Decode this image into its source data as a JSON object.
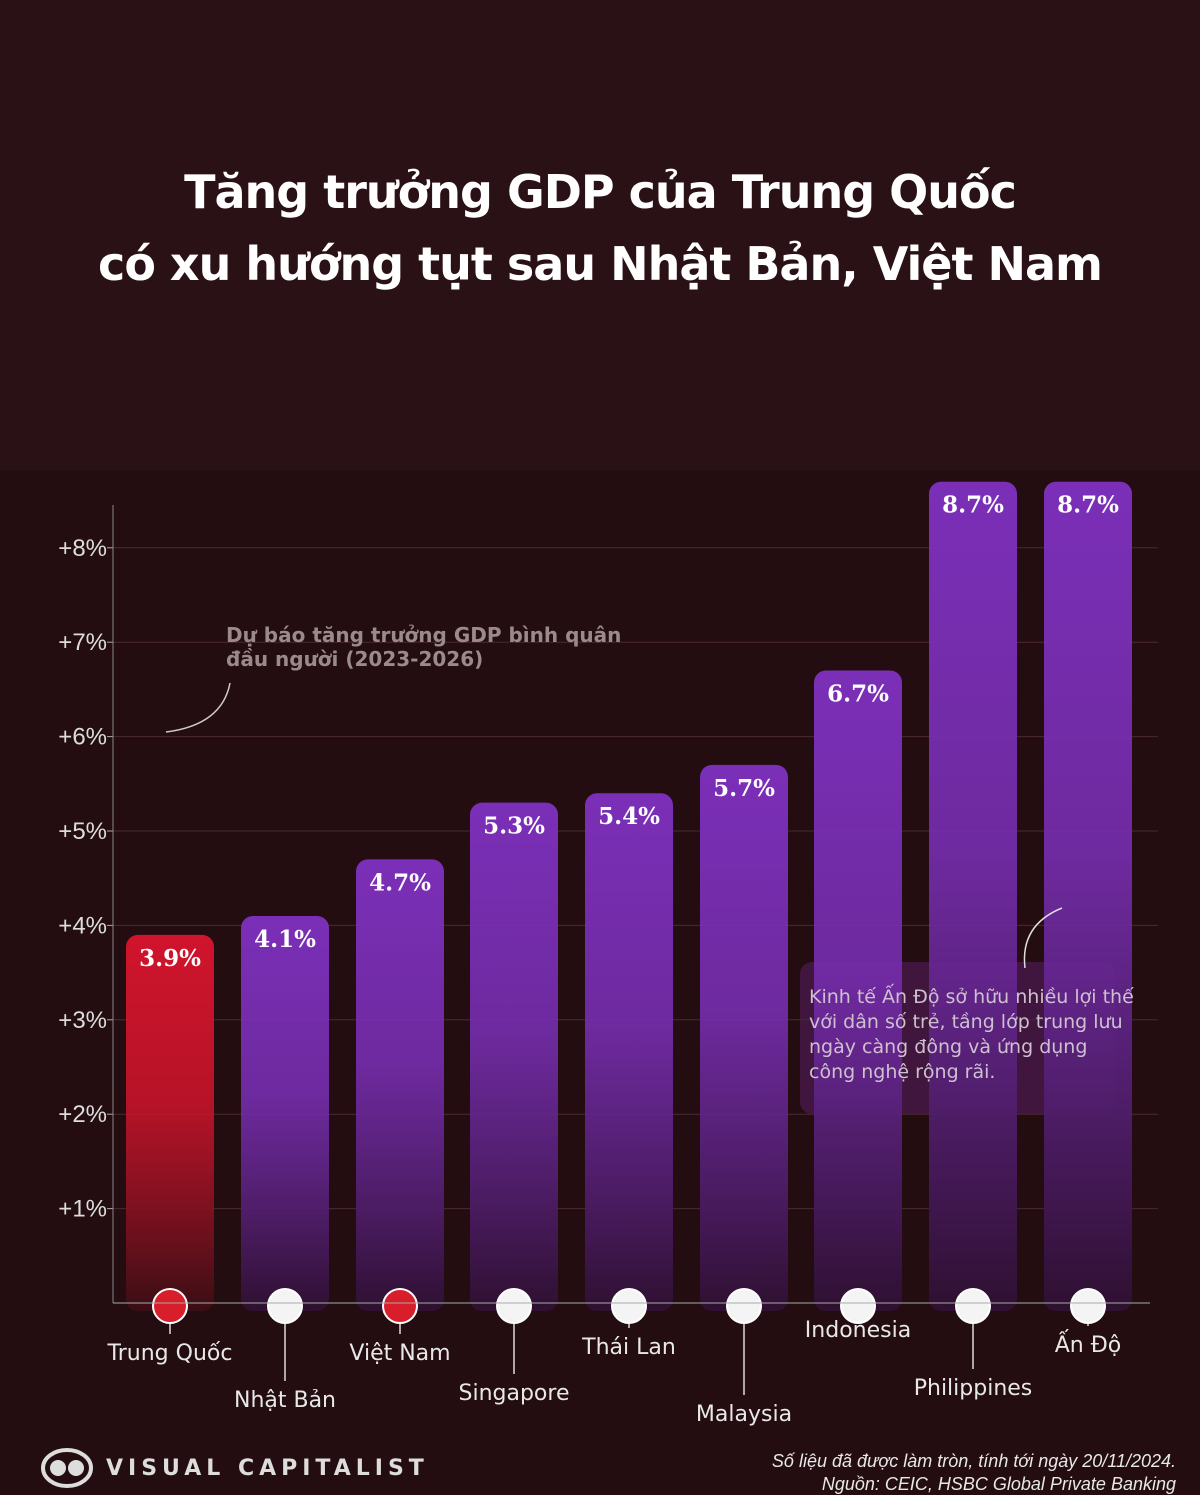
{
  "title_lines": [
    "Tăng trưởng GDP của Trung Quốc",
    "có xu hướng tụt sau Nhật Bản, Việt Nam"
  ],
  "chart_data": {
    "type": "bar",
    "title": "Tăng trưởng GDP của Trung Quốc có xu hướng tụt sau Nhật Bản, Việt Nam",
    "categories": [
      "Trung Quốc",
      "Nhật Bản",
      "Việt Nam",
      "Singapore",
      "Thái Lan",
      "Malaysia",
      "Indonesia",
      "Philippines",
      "Ấn Độ"
    ],
    "values": [
      3.9,
      4.1,
      4.7,
      5.3,
      5.4,
      5.7,
      6.7,
      8.7,
      8.7
    ],
    "data_labels": [
      "3.9%",
      "4.1%",
      "4.7%",
      "5.3%",
      "5.4%",
      "5.7%",
      "6.7%",
      "8.7%",
      "8.7%"
    ],
    "unit": "%",
    "ylim": [
      0,
      8.7
    ],
    "yticks": [
      1,
      2,
      3,
      4,
      5,
      6,
      7,
      8
    ],
    "ytick_labels": [
      "+1%",
      "+2%",
      "+3%",
      "+4%",
      "+5%",
      "+6%",
      "+7%",
      "+8%"
    ],
    "grid": true,
    "colors": {
      "highlight": "#d0142c",
      "default": "#7a2db5"
    },
    "annotations": [
      "Dự báo tăng trưởng GDP bình quân đầu người (2023-2026)",
      "Kinh tế Ấn Độ sở hữu nhiều lợi thế với dân số trẻ, tầng lớp trung lưu ngày càng đông và ứng dụng công nghệ rộng rãi."
    ]
  },
  "brand": "VISUAL CAPITALIST",
  "footer": [
    "Số liệu đã được làm tròn, tính tới ngày 20/11/2024.",
    "Nguồn: CEIC, HSBC Global Private Banking"
  ]
}
